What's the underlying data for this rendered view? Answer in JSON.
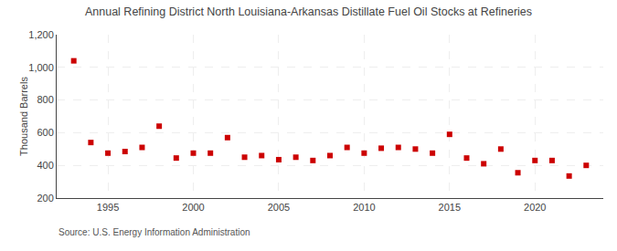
{
  "chart_data": {
    "type": "scatter",
    "title": "Annual Refining District North Louisiana-Arkansas Distillate Fuel Oil Stocks at Refineries",
    "ylabel": "Thousand Barrels",
    "annotations": [
      "Source: U.S. Energy Information Administration"
    ],
    "x": [
      1993,
      1994,
      1995,
      1996,
      1997,
      1998,
      1999,
      2000,
      2001,
      2002,
      2003,
      2004,
      2005,
      2006,
      2007,
      2008,
      2009,
      2010,
      2011,
      2012,
      2013,
      2014,
      2015,
      2016,
      2017,
      2018,
      2019,
      2020,
      2021,
      2022,
      2023
    ],
    "values": [
      1040,
      540,
      475,
      485,
      510,
      640,
      445,
      475,
      475,
      570,
      450,
      460,
      435,
      450,
      430,
      460,
      510,
      475,
      505,
      510,
      500,
      475,
      590,
      445,
      410,
      500,
      355,
      430,
      430,
      335,
      400
    ],
    "color": "#cc0000",
    "marker": "square",
    "xlim": [
      1992,
      2024
    ],
    "xticks": [
      1995,
      2000,
      2005,
      2010,
      2015,
      2020
    ],
    "ylim": [
      200,
      1200
    ],
    "yticks": [
      200,
      400,
      600,
      800,
      {
        "value": 1000,
        "label": "1,000"
      },
      {
        "value": 1200,
        "label": "1,200"
      }
    ],
    "grid": true
  }
}
